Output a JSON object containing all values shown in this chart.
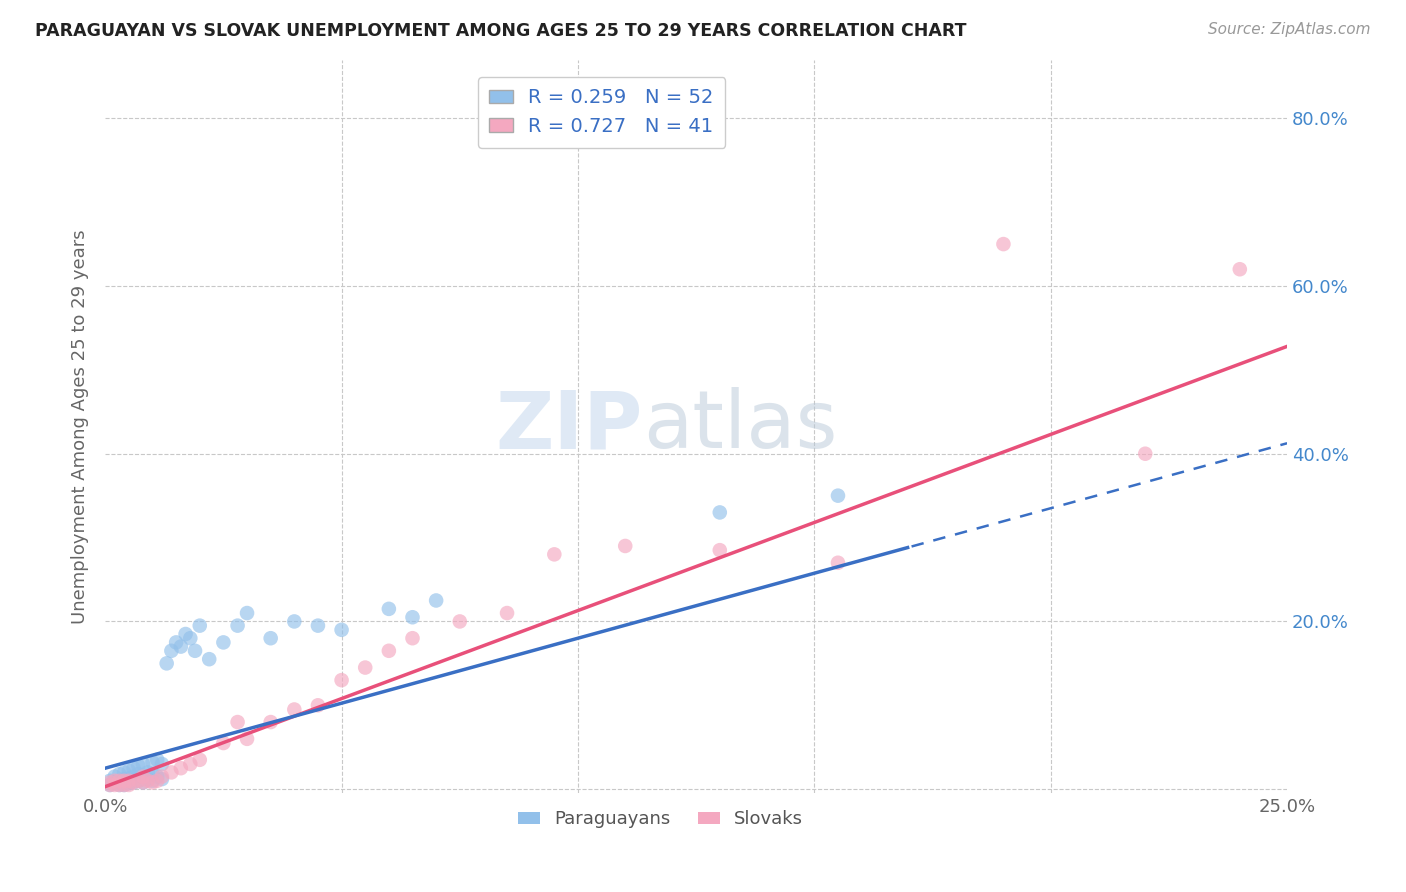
{
  "title": "PARAGUAYAN VS SLOVAK UNEMPLOYMENT AMONG AGES 25 TO 29 YEARS CORRELATION CHART",
  "source": "Source: ZipAtlas.com",
  "ylabel": "Unemployment Among Ages 25 to 29 years",
  "paraguayan_R": 0.259,
  "paraguayan_N": 52,
  "slovak_R": 0.727,
  "slovak_N": 41,
  "xlim": [
    0.0,
    0.25
  ],
  "ylim": [
    -0.005,
    0.87
  ],
  "xticks": [
    0.0,
    0.05,
    0.1,
    0.15,
    0.2,
    0.25
  ],
  "xticklabels": [
    "0.0%",
    "",
    "",
    "",
    "",
    "25.0%"
  ],
  "yticks": [
    0.0,
    0.2,
    0.4,
    0.6,
    0.8
  ],
  "yticklabels": [
    "",
    "20.0%",
    "40.0%",
    "60.0%",
    "80.0%"
  ],
  "paraguayan_color": "#92c0ea",
  "slovak_color": "#f4a8c0",
  "paraguayan_line_color": "#3a6fc4",
  "slovak_line_color": "#e8507a",
  "paraguayan_line_solid_end": 0.17,
  "par_line_slope": 1.55,
  "par_line_intercept": 0.025,
  "slk_line_slope": 2.1,
  "slk_line_intercept": 0.003,
  "paraguayan_x": [
    0.001,
    0.001,
    0.002,
    0.002,
    0.003,
    0.003,
    0.003,
    0.004,
    0.004,
    0.004,
    0.005,
    0.005,
    0.005,
    0.006,
    0.006,
    0.006,
    0.007,
    0.007,
    0.007,
    0.008,
    0.008,
    0.008,
    0.009,
    0.009,
    0.01,
    0.01,
    0.01,
    0.011,
    0.011,
    0.012,
    0.012,
    0.013,
    0.014,
    0.015,
    0.016,
    0.017,
    0.018,
    0.019,
    0.02,
    0.022,
    0.025,
    0.028,
    0.03,
    0.035,
    0.04,
    0.045,
    0.05,
    0.06,
    0.065,
    0.07,
    0.13,
    0.155
  ],
  "paraguayan_y": [
    0.005,
    0.01,
    0.008,
    0.015,
    0.005,
    0.01,
    0.018,
    0.005,
    0.012,
    0.02,
    0.007,
    0.013,
    0.022,
    0.008,
    0.015,
    0.025,
    0.01,
    0.018,
    0.028,
    0.008,
    0.016,
    0.03,
    0.012,
    0.02,
    0.01,
    0.018,
    0.032,
    0.015,
    0.035,
    0.012,
    0.03,
    0.15,
    0.165,
    0.175,
    0.17,
    0.185,
    0.18,
    0.165,
    0.195,
    0.155,
    0.175,
    0.195,
    0.21,
    0.18,
    0.2,
    0.195,
    0.19,
    0.215,
    0.205,
    0.225,
    0.33,
    0.35
  ],
  "slovak_x": [
    0.001,
    0.001,
    0.002,
    0.002,
    0.003,
    0.003,
    0.004,
    0.004,
    0.005,
    0.005,
    0.006,
    0.007,
    0.008,
    0.008,
    0.009,
    0.01,
    0.011,
    0.012,
    0.014,
    0.016,
    0.018,
    0.02,
    0.025,
    0.028,
    0.03,
    0.035,
    0.04,
    0.045,
    0.05,
    0.055,
    0.06,
    0.065,
    0.075,
    0.085,
    0.095,
    0.11,
    0.13,
    0.155,
    0.19,
    0.22,
    0.24
  ],
  "slovak_y": [
    0.005,
    0.008,
    0.005,
    0.01,
    0.005,
    0.01,
    0.005,
    0.01,
    0.005,
    0.01,
    0.008,
    0.01,
    0.008,
    0.015,
    0.01,
    0.008,
    0.01,
    0.015,
    0.02,
    0.025,
    0.03,
    0.035,
    0.055,
    0.08,
    0.06,
    0.08,
    0.095,
    0.1,
    0.13,
    0.145,
    0.165,
    0.18,
    0.2,
    0.21,
    0.28,
    0.29,
    0.285,
    0.27,
    0.65,
    0.4,
    0.62
  ],
  "grid_color": "#c8c8c8",
  "background_color": "#ffffff",
  "watermark_zip_color": "#c5d8ee",
  "watermark_atlas_color": "#b8c8d8"
}
